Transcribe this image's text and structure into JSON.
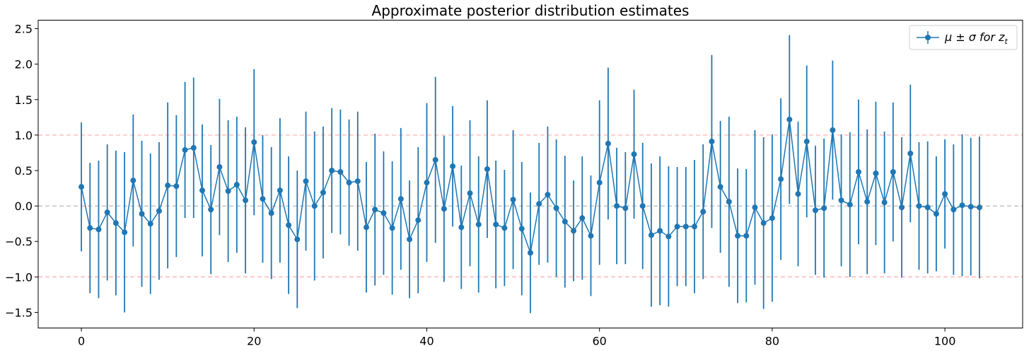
{
  "chart_data": {
    "type": "line",
    "title": "Approximate posterior distribution estimates",
    "xlabel": "",
    "ylabel": "",
    "xlim": [
      -5,
      109
    ],
    "ylim": [
      -1.72,
      2.62
    ],
    "xticks": [
      0,
      20,
      40,
      60,
      80,
      100
    ],
    "xtick_labels": [
      "0",
      "20",
      "40",
      "60",
      "80",
      "100"
    ],
    "yticks": [
      -1.5,
      -1.0,
      -0.5,
      0.0,
      0.5,
      1.0,
      1.5,
      2.0,
      2.5
    ],
    "ytick_labels": [
      "−1.5",
      "−1.0",
      "−0.5",
      "0.0",
      "0.5",
      "1.0",
      "1.5",
      "2.0",
      "2.5"
    ],
    "reference_lines": [
      {
        "y": 1.0,
        "color": "#ffb3b3",
        "style": "dashed"
      },
      {
        "y": -1.0,
        "color": "#ffb3b3",
        "style": "dashed"
      },
      {
        "y": 0.0,
        "color": "#b8b8b8",
        "style": "dashed"
      }
    ],
    "legend": {
      "position": "top-right",
      "label": "μ ± σ for z",
      "label_subscript": "t"
    },
    "color": "#1f77b4",
    "series": [
      {
        "name": "μ ± σ for z_t",
        "x": [
          0,
          1,
          2,
          3,
          4,
          5,
          6,
          7,
          8,
          9,
          10,
          11,
          12,
          13,
          14,
          15,
          16,
          17,
          18,
          19,
          20,
          21,
          22,
          23,
          24,
          25,
          26,
          27,
          28,
          29,
          30,
          31,
          32,
          33,
          34,
          35,
          36,
          37,
          38,
          39,
          40,
          41,
          42,
          43,
          44,
          45,
          46,
          47,
          48,
          49,
          50,
          51,
          52,
          53,
          54,
          55,
          56,
          57,
          58,
          59,
          60,
          61,
          62,
          63,
          64,
          65,
          66,
          67,
          68,
          69,
          70,
          71,
          72,
          73,
          74,
          75,
          76,
          77,
          78,
          79,
          80,
          81,
          82,
          83,
          84,
          85,
          86,
          87,
          88,
          89,
          90,
          91,
          92,
          93,
          94,
          95,
          96,
          97,
          98,
          99,
          100,
          101,
          102,
          103,
          104
        ],
        "mu": [
          0.27,
          -0.31,
          -0.33,
          -0.09,
          -0.24,
          -0.37,
          0.36,
          -0.11,
          -0.25,
          -0.07,
          0.29,
          0.28,
          0.79,
          0.82,
          0.22,
          -0.05,
          0.55,
          0.21,
          0.3,
          0.08,
          0.9,
          0.1,
          -0.1,
          0.22,
          -0.27,
          -0.47,
          0.35,
          0.0,
          0.19,
          0.5,
          0.48,
          0.33,
          0.35,
          -0.3,
          -0.05,
          -0.1,
          -0.31,
          0.1,
          -0.47,
          -0.2,
          0.33,
          0.65,
          -0.04,
          0.56,
          -0.3,
          0.18,
          -0.26,
          0.52,
          -0.26,
          -0.31,
          0.09,
          -0.32,
          -0.66,
          0.03,
          0.16,
          -0.03,
          -0.22,
          -0.35,
          -0.17,
          -0.42,
          0.33,
          0.88,
          0.0,
          -0.03,
          0.73,
          0.0,
          -0.41,
          -0.35,
          -0.43,
          -0.29,
          -0.29,
          -0.29,
          -0.08,
          0.91,
          0.27,
          0.06,
          -0.42,
          -0.42,
          -0.02,
          -0.24,
          -0.17,
          0.38,
          1.22,
          0.17,
          0.91,
          -0.06,
          -0.03,
          1.07,
          0.08,
          0.02,
          0.48,
          0.06,
          0.46,
          0.05,
          0.48,
          -0.02,
          0.74,
          0.0,
          -0.02,
          -0.11,
          0.17,
          -0.05,
          0.01,
          -0.01,
          -0.02
        ],
        "sigma": [
          0.91,
          0.92,
          0.97,
          0.96,
          1.02,
          1.13,
          0.93,
          1.03,
          0.99,
          0.97,
          1.17,
          1.0,
          0.96,
          0.99,
          0.93,
          0.91,
          0.96,
          1.0,
          0.96,
          1.03,
          1.03,
          0.9,
          0.93,
          1.02,
          0.97,
          0.97,
          0.98,
          1.05,
          0.93,
          0.88,
          0.88,
          0.89,
          0.98,
          0.92,
          1.07,
          0.87,
          0.94,
          1.0,
          0.83,
          1.03,
          1.12,
          1.17,
          1.03,
          0.85,
          0.87,
          1.03,
          0.96,
          0.97,
          0.9,
          0.82,
          0.98,
          0.94,
          0.85,
          0.86,
          0.96,
          0.97,
          0.93,
          0.71,
          0.87,
          0.85,
          1.16,
          1.07,
          0.82,
          0.79,
          0.91,
          0.89,
          1.01,
          1.05,
          0.99,
          0.84,
          0.84,
          0.94,
          0.95,
          1.22,
          0.93,
          1.2,
          0.95,
          0.94,
          1.09,
          1.21,
          1.18,
          1.14,
          1.19,
          1.02,
          1.07,
          0.91,
          0.98,
          0.98,
          0.93,
          1.02,
          1.02,
          1.02,
          1.01,
          1.0,
          0.98,
          0.99,
          0.97,
          0.9,
          0.93,
          0.81,
          0.77,
          0.92,
          1.0,
          0.97,
          1.0
        ]
      }
    ]
  }
}
